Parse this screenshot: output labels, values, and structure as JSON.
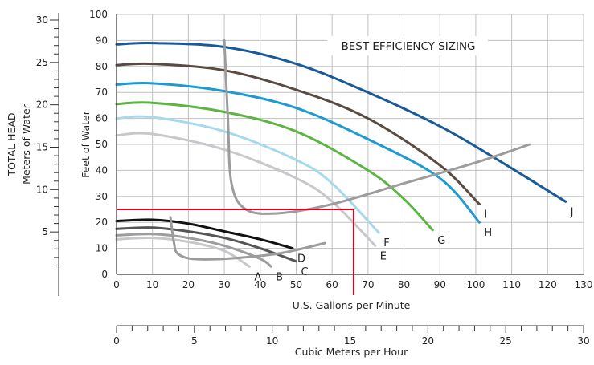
{
  "chart_data": {
    "type": "line",
    "title": "",
    "xlabel": "U.S. Gallons per Minute",
    "ylabel": "Feet of Water",
    "ylabel_secondary": "Meters of Water",
    "ylabel_secondary_group": "TOTAL HEAD",
    "xlabel_secondary": "Cubic Meters per Hour",
    "xlim": [
      0,
      130
    ],
    "ylim": [
      0,
      100
    ],
    "xlim_secondary": [
      0,
      30
    ],
    "ylim_secondary": [
      0,
      30
    ],
    "x_ticks": [
      "0",
      "10",
      "20",
      "30",
      "40",
      "50",
      "60",
      "70",
      "80",
      "90",
      "100",
      "110",
      "120",
      "130"
    ],
    "y_ticks": [
      "0",
      "10",
      "20",
      "30",
      "40",
      "50",
      "60",
      "70",
      "80",
      "90",
      "100"
    ],
    "y2_ticks": [
      "5",
      "10",
      "15",
      "20",
      "25",
      "30"
    ],
    "x2_ticks": [
      "0",
      "5",
      "10",
      "15",
      "20",
      "25",
      "30"
    ],
    "grid": true,
    "annotation": "BEST EFFICIENCY SIZING",
    "colors": {
      "dark_blue": "#1a5a98",
      "brown": "#5a4a42",
      "blue": "#1e9ad3",
      "green": "#5cb443",
      "light_blue": "#a6d9ec",
      "light_gray": "#c8c8cc",
      "mid_gray": "#9c9c9c",
      "dark_gray": "#555555",
      "black": "#111111",
      "red": "#e2001a",
      "grid": "#c0c0c0"
    },
    "series": [
      {
        "name": "J",
        "color": "#1a5a98",
        "x": [
          0,
          10,
          30,
          50,
          70,
          90,
          105,
          125
        ],
        "y": [
          88.5,
          89,
          87.5,
          81,
          70,
          57,
          45,
          28
        ]
      },
      {
        "name": "I",
        "color": "#5a4a42",
        "x": [
          0,
          10,
          30,
          50,
          70,
          90,
          101
        ],
        "y": [
          80.5,
          81,
          78.5,
          71,
          60,
          42,
          27
        ]
      },
      {
        "name": "H",
        "color": "#1e9ad3",
        "x": [
          0,
          10,
          30,
          50,
          70,
          90,
          101
        ],
        "y": [
          73,
          73.5,
          70.5,
          64,
          52,
          37,
          20
        ]
      },
      {
        "name": "G",
        "color": "#5cb443",
        "x": [
          0,
          10,
          30,
          50,
          70,
          80,
          88
        ],
        "y": [
          65.5,
          66,
          62.5,
          55,
          40,
          29,
          17
        ]
      },
      {
        "name": "F",
        "color": "#a6d9ec",
        "x": [
          0,
          10,
          30,
          50,
          60,
          73
        ],
        "y": [
          60,
          60.5,
          55,
          44,
          35,
          16
        ]
      },
      {
        "name": "E",
        "color": "#c8c8cc",
        "x": [
          0,
          10,
          30,
          50,
          60,
          72
        ],
        "y": [
          53.5,
          54,
          48,
          37,
          28,
          11
        ]
      },
      {
        "name": "D",
        "color": "#111111",
        "x": [
          0,
          10,
          20,
          30,
          40,
          49
        ],
        "y": [
          20.5,
          21,
          19.5,
          16.5,
          13.5,
          10
        ]
      },
      {
        "name": "C",
        "color": "#555555",
        "x": [
          0,
          10,
          20,
          30,
          40,
          50
        ],
        "y": [
          17.5,
          18,
          16.5,
          14,
          10,
          5
        ]
      },
      {
        "name": "B",
        "color": "#9c9c9c",
        "x": [
          0,
          10,
          20,
          30,
          40,
          43
        ],
        "y": [
          15,
          15.5,
          14,
          11,
          6,
          3
        ]
      },
      {
        "name": "A",
        "color": "#c8c8cc",
        "x": [
          0,
          10,
          20,
          30,
          37
        ],
        "y": [
          13.5,
          14,
          12.5,
          9,
          3
        ]
      }
    ],
    "efficiency_lines": [
      {
        "color": "#9c9c9c",
        "x": [
          30,
          31,
          32,
          36,
          45,
          60,
          80,
          100,
          115
        ],
        "y": [
          90,
          60,
          35,
          25,
          23.5,
          27,
          35,
          43,
          50
        ]
      },
      {
        "color": "#9c9c9c",
        "x": [
          15,
          16,
          17,
          21,
          30,
          45,
          58
        ],
        "y": [
          22,
          12,
          8,
          6,
          6,
          8,
          12
        ]
      }
    ],
    "selection_point": {
      "x": 66,
      "y": 25,
      "color": "#e2001a"
    }
  }
}
